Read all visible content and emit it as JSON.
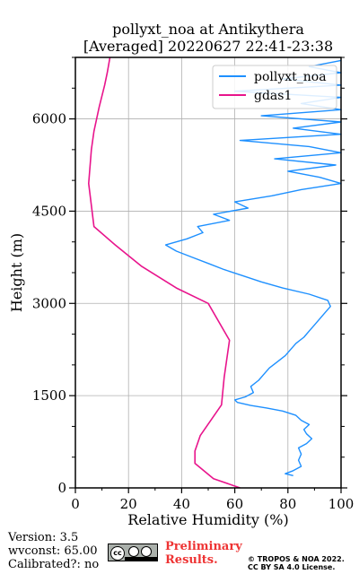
{
  "chart_data": {
    "type": "line",
    "title": "pollyxt_noa at Antikythera",
    "subtitle": "[Averaged] 20220627 22:41-23:38",
    "xlabel": "Relative Humidity (%)",
    "ylabel": "Height (m)",
    "xlim": [
      0,
      100
    ],
    "ylim": [
      0,
      7000
    ],
    "xticks": [
      "0",
      "20",
      "40",
      "60",
      "80",
      "100"
    ],
    "yticks": [
      "0",
      "1500",
      "3000",
      "4500",
      "6000"
    ],
    "grid": true,
    "legend_position": "top-right",
    "series": [
      {
        "name": "pollyxt_noa",
        "color": "#1e90ff",
        "points": [
          [
            82,
            200
          ],
          [
            79,
            230
          ],
          [
            82,
            280
          ],
          [
            85,
            350
          ],
          [
            84,
            450
          ],
          [
            85,
            550
          ],
          [
            84,
            650
          ],
          [
            87,
            720
          ],
          [
            89,
            800
          ],
          [
            87,
            880
          ],
          [
            86,
            950
          ],
          [
            88,
            1030
          ],
          [
            85,
            1100
          ],
          [
            83,
            1180
          ],
          [
            78,
            1250
          ],
          [
            72,
            1300
          ],
          [
            66,
            1340
          ],
          [
            61,
            1390
          ],
          [
            60,
            1430
          ],
          [
            64,
            1480
          ],
          [
            67,
            1550
          ],
          [
            66,
            1650
          ],
          [
            69,
            1750
          ],
          [
            71,
            1850
          ],
          [
            73,
            1950
          ],
          [
            76,
            2050
          ],
          [
            79,
            2150
          ],
          [
            81,
            2250
          ],
          [
            83,
            2350
          ],
          [
            86,
            2450
          ],
          [
            88,
            2550
          ],
          [
            90,
            2650
          ],
          [
            92,
            2750
          ],
          [
            94,
            2850
          ],
          [
            96,
            2950
          ],
          [
            95,
            3050
          ],
          [
            88,
            3150
          ],
          [
            78,
            3250
          ],
          [
            70,
            3350
          ],
          [
            63,
            3450
          ],
          [
            56,
            3550
          ],
          [
            50,
            3650
          ],
          [
            44,
            3750
          ],
          [
            38,
            3850
          ],
          [
            34,
            3950
          ],
          [
            42,
            4050
          ],
          [
            48,
            4150
          ],
          [
            46,
            4250
          ],
          [
            58,
            4350
          ],
          [
            52,
            4450
          ],
          [
            65,
            4550
          ],
          [
            60,
            4650
          ],
          [
            74,
            4750
          ],
          [
            85,
            4850
          ],
          [
            100,
            4950
          ],
          [
            92,
            5050
          ],
          [
            80,
            5150
          ],
          [
            98,
            5250
          ],
          [
            75,
            5350
          ],
          [
            100,
            5450
          ],
          [
            88,
            5550
          ],
          [
            62,
            5650
          ],
          [
            100,
            5750
          ],
          [
            82,
            5850
          ],
          [
            100,
            5950
          ],
          [
            70,
            6050
          ],
          [
            100,
            6150
          ],
          [
            85,
            6250
          ],
          [
            100,
            6350
          ],
          [
            60,
            6450
          ],
          [
            100,
            6550
          ],
          [
            78,
            6650
          ],
          [
            100,
            6750
          ],
          [
            88,
            6850
          ],
          [
            100,
            6950
          ]
        ]
      },
      {
        "name": "gdas1",
        "color": "#e8148c",
        "points": [
          [
            62,
            0
          ],
          [
            52,
            150
          ],
          [
            45,
            400
          ],
          [
            45,
            600
          ],
          [
            47,
            850
          ],
          [
            55,
            1350
          ],
          [
            56,
            1800
          ],
          [
            58,
            2400
          ],
          [
            50,
            3000
          ],
          [
            38,
            3250
          ],
          [
            25,
            3600
          ],
          [
            15,
            3950
          ],
          [
            7,
            4250
          ],
          [
            5,
            4950
          ],
          [
            6,
            5500
          ],
          [
            7,
            5800
          ],
          [
            9,
            6200
          ],
          [
            11,
            6550
          ],
          [
            12,
            6750
          ],
          [
            13,
            7000
          ]
        ]
      }
    ]
  },
  "footer": {
    "version": "Version: 3.5",
    "wvconst": "wvconst:  65.00",
    "calibrated": "Calibrated?: no",
    "preliminary_line1": "Preliminary",
    "preliminary_line2": "Results.",
    "copyright_line1": "© TROPOS & NOA 2022.",
    "copyright_line2": "CC BY SA 4.0 License.",
    "license_badge": "cc-by-sa-badge"
  }
}
